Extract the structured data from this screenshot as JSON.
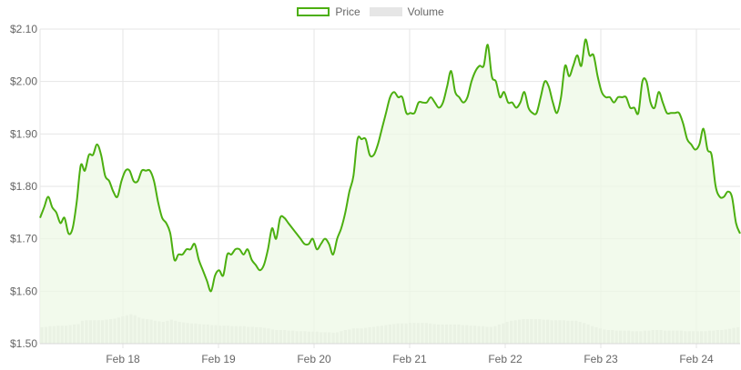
{
  "chart_data": {
    "type": "line",
    "title": "",
    "xlabel": "",
    "ylabel": "",
    "ylim": [
      1.5,
      2.1
    ],
    "y_ticks": [
      "$1.50",
      "$1.60",
      "$1.70",
      "$1.80",
      "$1.90",
      "$2.00",
      "$2.10"
    ],
    "x_tick_labels": [
      "Feb 18",
      "Feb 19",
      "Feb 20",
      "Feb 21",
      "Feb 22",
      "Feb 23",
      "Feb 24"
    ],
    "grid": true,
    "legend_placement": "top-center",
    "colors": {
      "price": "#4caf10",
      "price_fill": "#eef8e6",
      "volume": "#e0e0e0",
      "grid": "#e6e6e6"
    },
    "series": [
      {
        "name": "Price",
        "kind": "line",
        "x_range_days": [
          "Feb 17 03:00",
          "Feb 24 12:00"
        ],
        "values": [
          1.74,
          1.76,
          1.78,
          1.76,
          1.75,
          1.73,
          1.74,
          1.71,
          1.72,
          1.77,
          1.84,
          1.83,
          1.86,
          1.86,
          1.88,
          1.86,
          1.82,
          1.81,
          1.79,
          1.78,
          1.81,
          1.83,
          1.83,
          1.81,
          1.81,
          1.83,
          1.83,
          1.83,
          1.81,
          1.77,
          1.74,
          1.73,
          1.71,
          1.66,
          1.67,
          1.67,
          1.68,
          1.68,
          1.69,
          1.66,
          1.64,
          1.62,
          1.6,
          1.63,
          1.64,
          1.63,
          1.67,
          1.67,
          1.68,
          1.68,
          1.67,
          1.68,
          1.66,
          1.65,
          1.64,
          1.65,
          1.68,
          1.72,
          1.7,
          1.74,
          1.74,
          1.73,
          1.72,
          1.71,
          1.7,
          1.69,
          1.69,
          1.7,
          1.68,
          1.69,
          1.7,
          1.69,
          1.67,
          1.7,
          1.72,
          1.75,
          1.79,
          1.82,
          1.89,
          1.89,
          1.89,
          1.86,
          1.86,
          1.88,
          1.91,
          1.94,
          1.97,
          1.98,
          1.97,
          1.97,
          1.94,
          1.94,
          1.94,
          1.96,
          1.96,
          1.96,
          1.97,
          1.96,
          1.95,
          1.96,
          1.99,
          2.02,
          1.98,
          1.97,
          1.96,
          1.97,
          2.0,
          2.02,
          2.03,
          2.03,
          2.07,
          2.01,
          2.0,
          1.97,
          1.98,
          1.96,
          1.96,
          1.95,
          1.96,
          1.98,
          1.95,
          1.94,
          1.94,
          1.97,
          2.0,
          1.99,
          1.96,
          1.94,
          1.97,
          2.03,
          2.01,
          2.03,
          2.05,
          2.03,
          2.08,
          2.05,
          2.05,
          2.01,
          1.98,
          1.97,
          1.97,
          1.96,
          1.97,
          1.97,
          1.97,
          1.95,
          1.95,
          1.94,
          2.0,
          2.0,
          1.96,
          1.95,
          1.98,
          1.96,
          1.94,
          1.94,
          1.94,
          1.94,
          1.92,
          1.89,
          1.88,
          1.87,
          1.88,
          1.91,
          1.87,
          1.86,
          1.8,
          1.78,
          1.78,
          1.79,
          1.78,
          1.73,
          1.71
        ]
      },
      {
        "name": "Volume",
        "kind": "bar",
        "values_relative": [
          0.3,
          0.31,
          0.32,
          0.32,
          0.33,
          0.33,
          0.33,
          0.34,
          0.35,
          0.36,
          0.42,
          0.43,
          0.43,
          0.43,
          0.43,
          0.43,
          0.44,
          0.45,
          0.46,
          0.48,
          0.5,
          0.52,
          0.54,
          0.52,
          0.48,
          0.46,
          0.45,
          0.44,
          0.42,
          0.41,
          0.4,
          0.42,
          0.44,
          0.42,
          0.4,
          0.39,
          0.38,
          0.37,
          0.37,
          0.36,
          0.35,
          0.35,
          0.34,
          0.34,
          0.33,
          0.33,
          0.33,
          0.32,
          0.32,
          0.32,
          0.32,
          0.31,
          0.31,
          0.3,
          0.3,
          0.29,
          0.28,
          0.26,
          0.25,
          0.25,
          0.25,
          0.24,
          0.24,
          0.23,
          0.23,
          0.23,
          0.22,
          0.22,
          0.22,
          0.21,
          0.21,
          0.21,
          0.2,
          0.21,
          0.23,
          0.25,
          0.26,
          0.28,
          0.28,
          0.28,
          0.29,
          0.3,
          0.31,
          0.32,
          0.33,
          0.34,
          0.35,
          0.36,
          0.37,
          0.37,
          0.37,
          0.38,
          0.38,
          0.38,
          0.38,
          0.38,
          0.37,
          0.36,
          0.35,
          0.35,
          0.35,
          0.35,
          0.35,
          0.35,
          0.34,
          0.34,
          0.33,
          0.33,
          0.32,
          0.32,
          0.31,
          0.31,
          0.32,
          0.35,
          0.37,
          0.4,
          0.42,
          0.43,
          0.44,
          0.45,
          0.45,
          0.45,
          0.45,
          0.45,
          0.44,
          0.44,
          0.43,
          0.43,
          0.43,
          0.43,
          0.42,
          0.42,
          0.42,
          0.4,
          0.38,
          0.35,
          0.32,
          0.3,
          0.28,
          0.26,
          0.25,
          0.25,
          0.24,
          0.24,
          0.24,
          0.24,
          0.23,
          0.23,
          0.23,
          0.24,
          0.24,
          0.25,
          0.25,
          0.25,
          0.24,
          0.24,
          0.24,
          0.24,
          0.24,
          0.23,
          0.23,
          0.23,
          0.23,
          0.23,
          0.23,
          0.24,
          0.24,
          0.25,
          0.25,
          0.26,
          0.27,
          0.29,
          0.3
        ]
      }
    ]
  },
  "legend": {
    "price_label": "Price",
    "volume_label": "Volume"
  }
}
